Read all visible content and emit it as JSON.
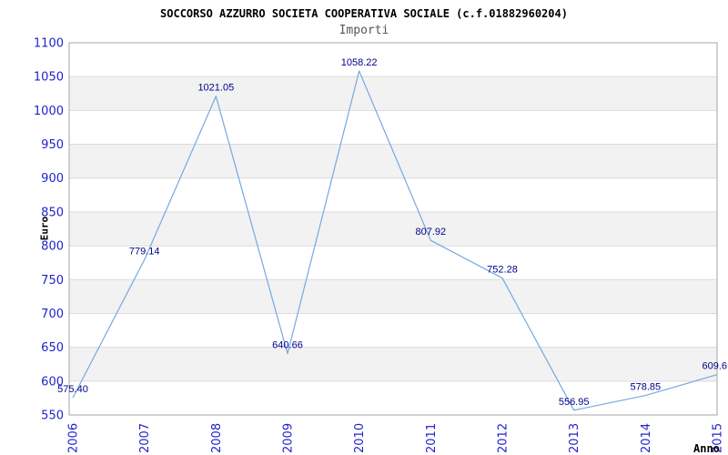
{
  "header": {
    "title": "SOCCORSO AZZURRO SOCIETA COOPERATIVA SOCIALE (c.f.01882960204)",
    "subtitle": "Importi"
  },
  "chart_data": {
    "type": "line",
    "title": "SOCCORSO AZZURRO SOCIETA COOPERATIVA SOCIALE (c.f.01882960204)",
    "subtitle": "Importi",
    "xlabel": "Anno",
    "ylabel": "Euro",
    "categories": [
      "2006",
      "2007",
      "2008",
      "2009",
      "2010",
      "2011",
      "2012",
      "2013",
      "2014",
      "2015"
    ],
    "values": [
      575.4,
      779.14,
      1021.05,
      640.66,
      1058.22,
      807.92,
      752.28,
      556.95,
      578.85,
      609.6
    ],
    "point_labels": [
      "575.40",
      "779.14",
      "1021.05",
      "640.66",
      "1058.22",
      "807.92",
      "752.28",
      "556.95",
      "578.85",
      "609.6"
    ],
    "ylim": [
      550,
      1100
    ],
    "ytick_step": 50,
    "yticks": [
      1100,
      1050,
      1000,
      950,
      900,
      850,
      800,
      750,
      700,
      650,
      600,
      550
    ],
    "grid": "horizontal gridlines with alternating shaded bands",
    "legend": "none",
    "colors": {
      "line": "#74A9E0",
      "point_label": "#00008B",
      "tick_label": "#2222CC",
      "band": "#F2F2F2",
      "gridline": "#DBDBDB",
      "border": "#A6A6A6",
      "title": "#000000",
      "subtitle": "#555555",
      "axis_title": "#000000",
      "background": "#FFFFFF"
    }
  }
}
